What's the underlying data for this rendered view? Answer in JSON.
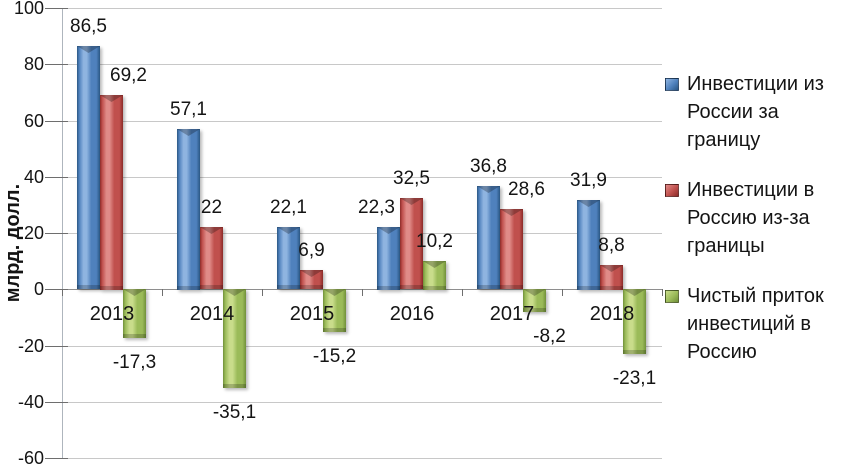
{
  "chart_data": {
    "type": "bar",
    "title": "",
    "ylabel": "млрд. долл.",
    "xlabel": "",
    "categories": [
      "2013",
      "2014",
      "2015",
      "2016",
      "2017",
      "2018"
    ],
    "series": [
      {
        "key": "investments-out-of-russia",
        "name": "Инвестиции из России за границу",
        "legend_lines": [
          "Инвестиции из",
          "России за границу"
        ],
        "color": "#4F81BD",
        "color_light": "#8FB4E0",
        "color_dark": "#2A5784",
        "values": [
          86.5,
          57.1,
          22.1,
          22.3,
          36.8,
          31.9
        ],
        "labels": [
          "86,5",
          "57,1",
          "22,1",
          "22,3",
          "36,8",
          "31,9"
        ],
        "label_dx": [
          0,
          0,
          0,
          -12,
          0,
          0
        ]
      },
      {
        "key": "investments-into-russia",
        "name": "Инвестиции в Россию из-за границы",
        "legend_lines": [
          "Инвестиции в",
          "Россию из-за",
          "границы"
        ],
        "color": "#C0504D",
        "color_light": "#E08B88",
        "color_dark": "#8C2B28",
        "values": [
          69.2,
          22,
          6.9,
          32.5,
          28.6,
          8.8
        ],
        "labels": [
          "69,2",
          "22",
          "6,9",
          "32,5",
          "28,6",
          "8,8"
        ],
        "label_dx": [
          17,
          0,
          0,
          0,
          15,
          0
        ]
      },
      {
        "key": "net-inflow-into-russia",
        "name": "Чистый приток инвестиций в Россию",
        "legend_lines": [
          "Чистый приток",
          "инвестиций в",
          "Россию"
        ],
        "color": "#9BBB59",
        "color_light": "#C9DC8B",
        "color_dark": "#71903A",
        "values": [
          -17.3,
          -35.1,
          -15.2,
          10.2,
          -8.2,
          -23.1
        ],
        "labels": [
          "-17,3",
          "-35,1",
          "-15,2",
          "10,2",
          "-8,2",
          "-23,1"
        ],
        "label_dx": [
          0,
          0,
          0,
          0,
          15,
          0
        ]
      }
    ],
    "ylim": [
      -60,
      100
    ],
    "ytick_step": 20,
    "ytick_labels": [
      "100",
      "80",
      "60",
      "40",
      "20",
      "0",
      "-20",
      "-40",
      "-60"
    ],
    "grid": true,
    "legend_position": "right"
  },
  "colors": {
    "background": "#FFFFFF",
    "gridline": "#C8C8C8",
    "zero_line": "#8E8E8E",
    "axis_line": "#AEB5BD",
    "tick": "#6E6E6E",
    "text": "#141414"
  }
}
